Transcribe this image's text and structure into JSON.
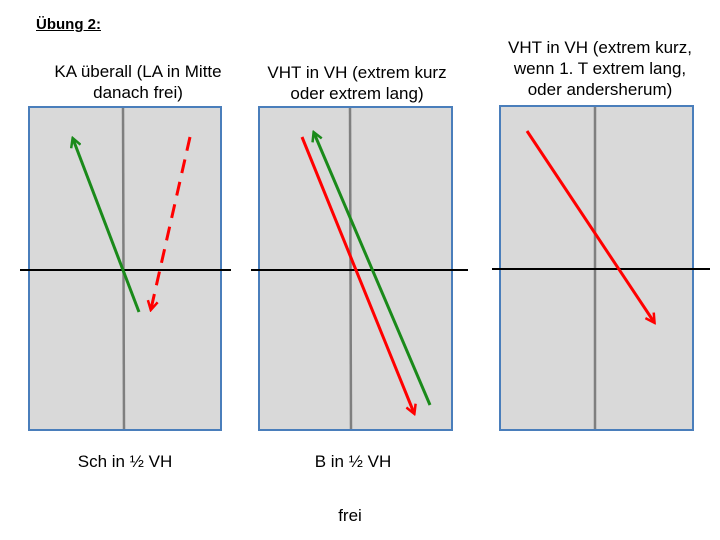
{
  "heading": "Übung 2:",
  "panels": [
    {
      "caption": "KA überall (LA in Mitte\ndanach frei)",
      "bottom_label": "Sch in ½ VH"
    },
    {
      "caption": "VHT in VH (extrem kurz\noder extrem lang)",
      "bottom_label": "B in ½ VH"
    },
    {
      "caption": "VHT in VH (extrem kurz,\nwenn 1. T extrem lang,\noder andersherum)",
      "bottom_label": ""
    }
  ],
  "footer_label": "frei",
  "colors": {
    "field_fill": "#d9d9d9",
    "field_border": "#4a7ebb",
    "center_line": "#7f7f7f",
    "half_line": "#000000",
    "green_arrow": "#1a8a1a",
    "red_arrow": "#ff0000"
  }
}
